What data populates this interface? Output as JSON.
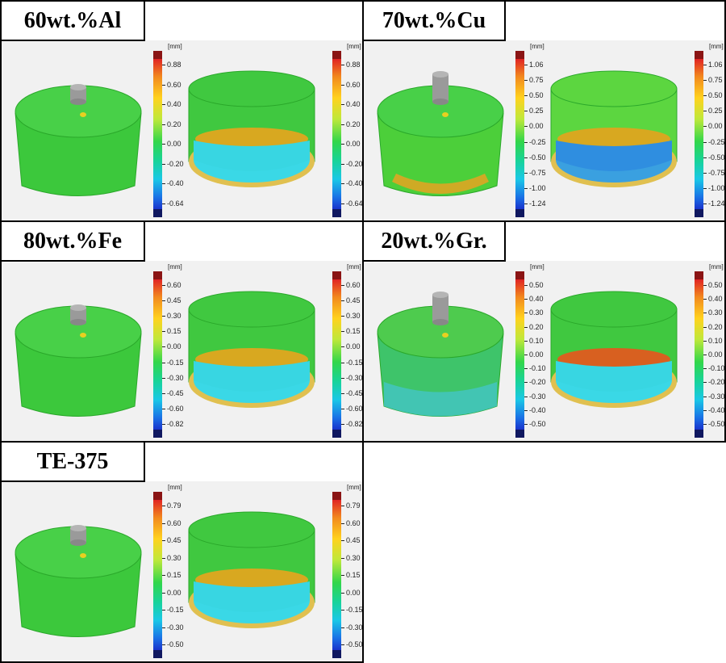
{
  "panels": [
    {
      "title": "60wt.%Al",
      "scale": {
        "unit": "[mm]",
        "ticks": [
          "0.88",
          "0.60",
          "0.40",
          "0.20",
          "0.00",
          "-0.20",
          "-0.40",
          "-0.64"
        ]
      }
    },
    {
      "title": "70wt.%Cu",
      "scale": {
        "unit": "[mm]",
        "ticks": [
          "1.06",
          "0.75",
          "0.50",
          "0.25",
          "0.00",
          "-0.25",
          "-0.50",
          "-0.75",
          "-1.00",
          "-1.24"
        ]
      }
    },
    {
      "title": "80wt.%Fe",
      "scale": {
        "unit": "[mm]",
        "ticks": [
          "0.60",
          "0.45",
          "0.30",
          "0.15",
          "0.00",
          "-0.15",
          "-0.30",
          "-0.45",
          "-0.60",
          "-0.82"
        ]
      }
    },
    {
      "title": "20wt.%Gr.",
      "scale": {
        "unit": "[mm]",
        "ticks": [
          "0.50",
          "0.40",
          "0.30",
          "0.20",
          "0.10",
          "0.00",
          "-0.10",
          "-0.20",
          "-0.30",
          "-0.40",
          "-0.50"
        ]
      }
    },
    {
      "title": "TE-375",
      "scale": {
        "unit": "[mm]",
        "ticks": [
          "0.79",
          "0.60",
          "0.45",
          "0.30",
          "0.15",
          "0.00",
          "-0.15",
          "-0.30",
          "-0.50"
        ]
      }
    }
  ],
  "colors": {
    "body": "#3cc83c",
    "inner_blue": "#3ad8e6",
    "inner_top": "#d8a820",
    "pin": "#9a9a9a"
  }
}
